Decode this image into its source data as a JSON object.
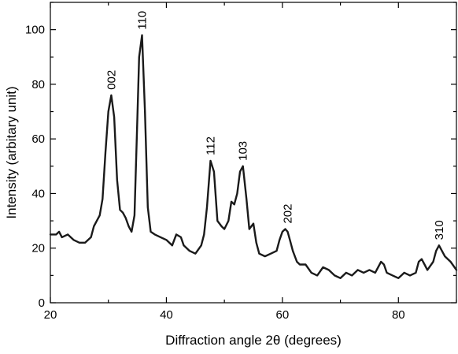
{
  "chart_data": {
    "type": "line",
    "title": "",
    "xlabel": "Diffraction angle 2θ (degrees)",
    "ylabel": "Intensity (arbitary unit)",
    "xlim": [
      20,
      90
    ],
    "ylim": [
      0,
      110
    ],
    "x_ticks": [
      20,
      40,
      60,
      80
    ],
    "y_ticks": [
      0,
      20,
      40,
      60,
      80,
      100
    ],
    "grid": false,
    "legend": "none",
    "line_color": "#1a1a1a",
    "series": [
      {
        "x": [
          20,
          21,
          21.5,
          22,
          23,
          24,
          25,
          26,
          27,
          27.5,
          28,
          28.5,
          29,
          29.5,
          30,
          30.5,
          31,
          31.5,
          32,
          32.5,
          33,
          33.5,
          34,
          34.5,
          35,
          35.3,
          35.8,
          36.3,
          36.8,
          37.3,
          38,
          39,
          40,
          41,
          41.7,
          42.5,
          43,
          44,
          45,
          46,
          46.5,
          47,
          47.6,
          48.2,
          48.8,
          49.5,
          50,
          50.7,
          51.2,
          51.7,
          52.2,
          52.7,
          53.2,
          53.8,
          54.3,
          55,
          55.5,
          56,
          57,
          58,
          59,
          59.5,
          60,
          60.5,
          60.9,
          61.3,
          61.8,
          62.5,
          63,
          64,
          65,
          66,
          67,
          68,
          69,
          70,
          71,
          72,
          73,
          74,
          75,
          76,
          77,
          77.5,
          78,
          79,
          80,
          81,
          82,
          83,
          83.5,
          84,
          84.5,
          85,
          86,
          86.5,
          87,
          87.5,
          88,
          89,
          90
        ],
        "y": [
          25,
          25,
          26,
          24,
          25,
          23,
          22,
          22,
          24,
          28,
          30,
          32,
          38,
          55,
          70,
          76,
          68,
          45,
          34,
          33,
          31,
          28,
          26,
          32,
          68,
          90,
          98,
          70,
          35,
          26,
          25,
          24,
          23,
          21,
          25,
          24,
          21,
          19,
          18,
          21,
          25,
          35,
          52,
          48,
          30,
          28,
          27,
          30,
          37,
          36,
          40,
          48,
          50,
          38,
          27,
          29,
          22,
          18,
          17,
          18,
          19,
          23,
          26,
          27,
          26,
          23,
          19,
          15,
          14,
          14,
          11,
          10,
          13,
          12,
          10,
          9,
          11,
          10,
          12,
          11,
          12,
          11,
          15,
          14,
          11,
          10,
          9,
          11,
          10,
          11,
          15,
          16,
          14,
          12,
          15,
          19,
          21,
          19,
          17,
          15,
          12
        ]
      }
    ],
    "annotations": [
      {
        "text": "002",
        "x": 30.5,
        "y": 78
      },
      {
        "text": "110",
        "x": 35.8,
        "y": 100
      },
      {
        "text": "112",
        "x": 47.6,
        "y": 54
      },
      {
        "text": "103",
        "x": 53.2,
        "y": 52
      },
      {
        "text": "202",
        "x": 60.9,
        "y": 29
      },
      {
        "text": "310",
        "x": 87,
        "y": 23
      }
    ]
  }
}
